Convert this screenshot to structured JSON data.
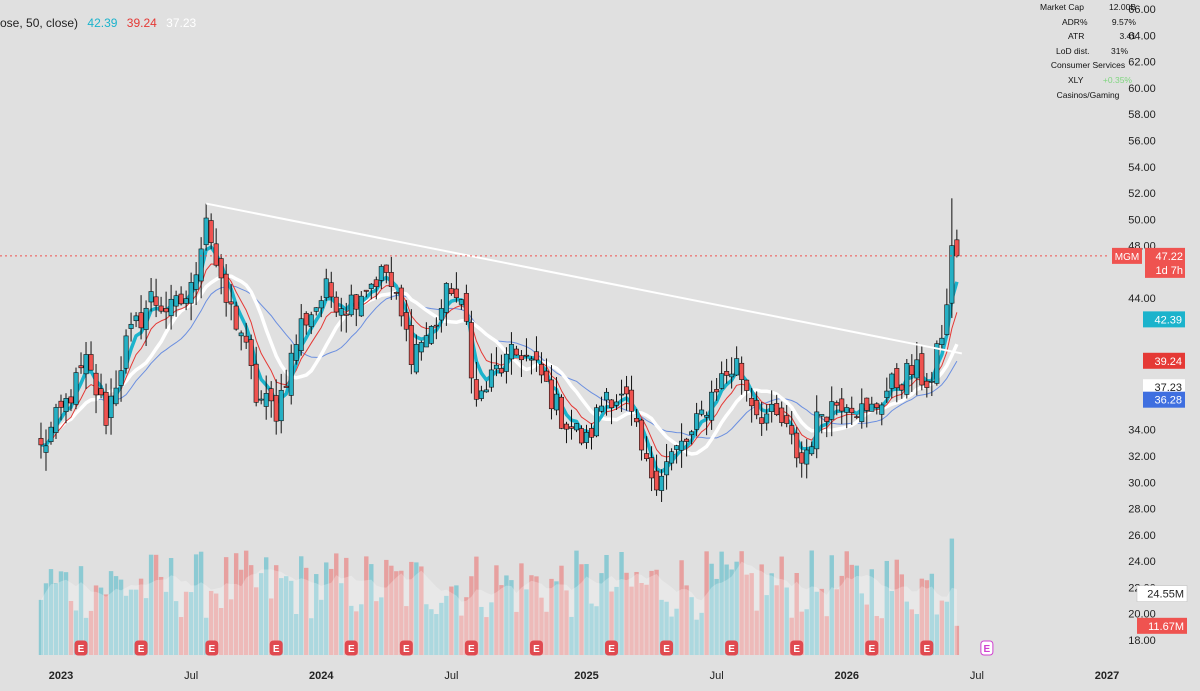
{
  "ticker": "MGM",
  "legend": {
    "ma_text": "ose, 50, close)",
    "ema_fast": "42.39",
    "ema_mid": "39.24",
    "sma_slow": "37.23"
  },
  "info_table": {
    "market_cap_label": "Market Cap",
    "market_cap_value": "12.00B",
    "adr_label": "ADR%",
    "adr_value": "9.57%",
    "atr_label": "ATR",
    "atr_value": "3.41",
    "lod_label": "LoD dist.",
    "lod_value": "31%",
    "sector": "Consumer Services",
    "etf_label": "XLY",
    "etf_value": "+0.35%",
    "industry": "Casinos/Gaming"
  },
  "price_tags": {
    "last_price": "47.22",
    "countdown": "1d 7h",
    "ema_fast": "42.39",
    "ema_mid": "39.24",
    "sma_slow": "37.23",
    "sma_200": "36.28",
    "volume_avg": "24.55M",
    "volume_last": "11.67M"
  },
  "colors": {
    "background": "#e0e0e0",
    "up": "#26b0c4",
    "down": "#ef5350",
    "ema_fast": "#1bb3cc",
    "ema_mid": "#e53935",
    "sma_slow": "#ffffff",
    "sma_200": "#6b8fe0",
    "trendline": "#ffffff",
    "price_line": "#ef5350",
    "earnings_badge": "#e04a50",
    "earnings_badge_up": "#26a69a",
    "upcoming_badge": "#d040d0"
  },
  "chart_data": {
    "type": "candlestick",
    "interval": "weekly",
    "y_axis": {
      "ticks": [
        "66.00",
        "64.00",
        "62.00",
        "60.00",
        "58.00",
        "56.00",
        "54.00",
        "52.00",
        "50.00",
        "48.00",
        "44.00",
        "34.00",
        "32.00",
        "30.00",
        "28.00",
        "26.00",
        "24.00",
        "22.00",
        "20.00",
        "18.00"
      ],
      "range": [
        17.5,
        66.5
      ]
    },
    "x_axis": {
      "ticks": [
        "2023",
        "Jul",
        "2024",
        "Jul",
        "2025",
        "Jul",
        "2026",
        "Jul",
        "2027"
      ],
      "tick_dates": [
        "2023-01-02",
        "2023-07-03",
        "2024-01-01",
        "2024-07-01",
        "2025-01-06",
        "2025-07-07",
        "2026-01-05",
        "2026-07-06",
        "2027-01-04"
      ]
    },
    "last_close": 47.22,
    "trendline": {
      "from": {
        "date": "2023-07-24",
        "price": 51.2
      },
      "to": {
        "date": "2026-06-15",
        "price": 39.8
      }
    },
    "close_anchors": [
      [
        "2022-12-05",
        32.5
      ],
      [
        "2023-01-09",
        36.0
      ],
      [
        "2023-02-06",
        39.0
      ],
      [
        "2023-03-06",
        35.0
      ],
      [
        "2023-04-03",
        40.5
      ],
      [
        "2023-05-08",
        44.0
      ],
      [
        "2023-06-05",
        43.0
      ],
      [
        "2023-07-03",
        44.5
      ],
      [
        "2023-07-24",
        50.5
      ],
      [
        "2023-08-14",
        44.5
      ],
      [
        "2023-09-11",
        41.5
      ],
      [
        "2023-10-02",
        36.5
      ],
      [
        "2023-10-30",
        35.5
      ],
      [
        "2023-12-04",
        42.0
      ],
      [
        "2024-01-08",
        44.5
      ],
      [
        "2024-02-05",
        43.5
      ],
      [
        "2024-03-04",
        45.0
      ],
      [
        "2024-04-01",
        46.0
      ],
      [
        "2024-05-06",
        40.0
      ],
      [
        "2024-06-03",
        41.5
      ],
      [
        "2024-07-01",
        45.0
      ],
      [
        "2024-07-22",
        42.0
      ],
      [
        "2024-08-05",
        36.0
      ],
      [
        "2024-09-02",
        38.5
      ],
      [
        "2024-10-07",
        40.0
      ],
      [
        "2024-11-04",
        38.0
      ],
      [
        "2024-12-02",
        35.0
      ],
      [
        "2025-01-06",
        33.0
      ],
      [
        "2025-02-03",
        37.0
      ],
      [
        "2025-03-03",
        36.0
      ],
      [
        "2025-03-31",
        31.0
      ],
      [
        "2025-04-14",
        30.5
      ],
      [
        "2025-05-05",
        32.0
      ],
      [
        "2025-06-02",
        33.5
      ],
      [
        "2025-07-07",
        37.5
      ],
      [
        "2025-08-04",
        39.0
      ],
      [
        "2025-09-01",
        35.5
      ],
      [
        "2025-10-06",
        34.5
      ],
      [
        "2025-11-03",
        31.5
      ],
      [
        "2025-12-01",
        35.5
      ],
      [
        "2026-01-05",
        36.5
      ],
      [
        "2026-02-02",
        35.0
      ],
      [
        "2026-03-02",
        37.0
      ],
      [
        "2026-04-06",
        38.5
      ],
      [
        "2026-05-04",
        37.5
      ],
      [
        "2026-05-25",
        43.5
      ],
      [
        "2026-06-01",
        48.0
      ],
      [
        "2026-06-08",
        47.22
      ]
    ],
    "volume_axis": {
      "range_millions": [
        0,
        68
      ]
    },
    "earnings_marks": [
      {
        "date": "2023-01-30",
        "type": "E"
      },
      {
        "date": "2023-04-24",
        "type": "E"
      },
      {
        "date": "2023-08-01",
        "type": "E"
      },
      {
        "date": "2023-10-30",
        "type": "E"
      },
      {
        "date": "2024-02-12",
        "type": "E"
      },
      {
        "date": "2024-04-29",
        "type": "E"
      },
      {
        "date": "2024-07-29",
        "type": "E"
      },
      {
        "date": "2024-10-28",
        "type": "E"
      },
      {
        "date": "2025-02-10",
        "type": "E"
      },
      {
        "date": "2025-04-28",
        "type": "E"
      },
      {
        "date": "2025-07-28",
        "type": "E"
      },
      {
        "date": "2025-10-27",
        "type": "E"
      },
      {
        "date": "2026-02-09",
        "type": "E"
      },
      {
        "date": "2026-04-27",
        "type": "E"
      },
      {
        "date": "2026-07-20",
        "type": "E",
        "upcoming": true
      }
    ]
  }
}
